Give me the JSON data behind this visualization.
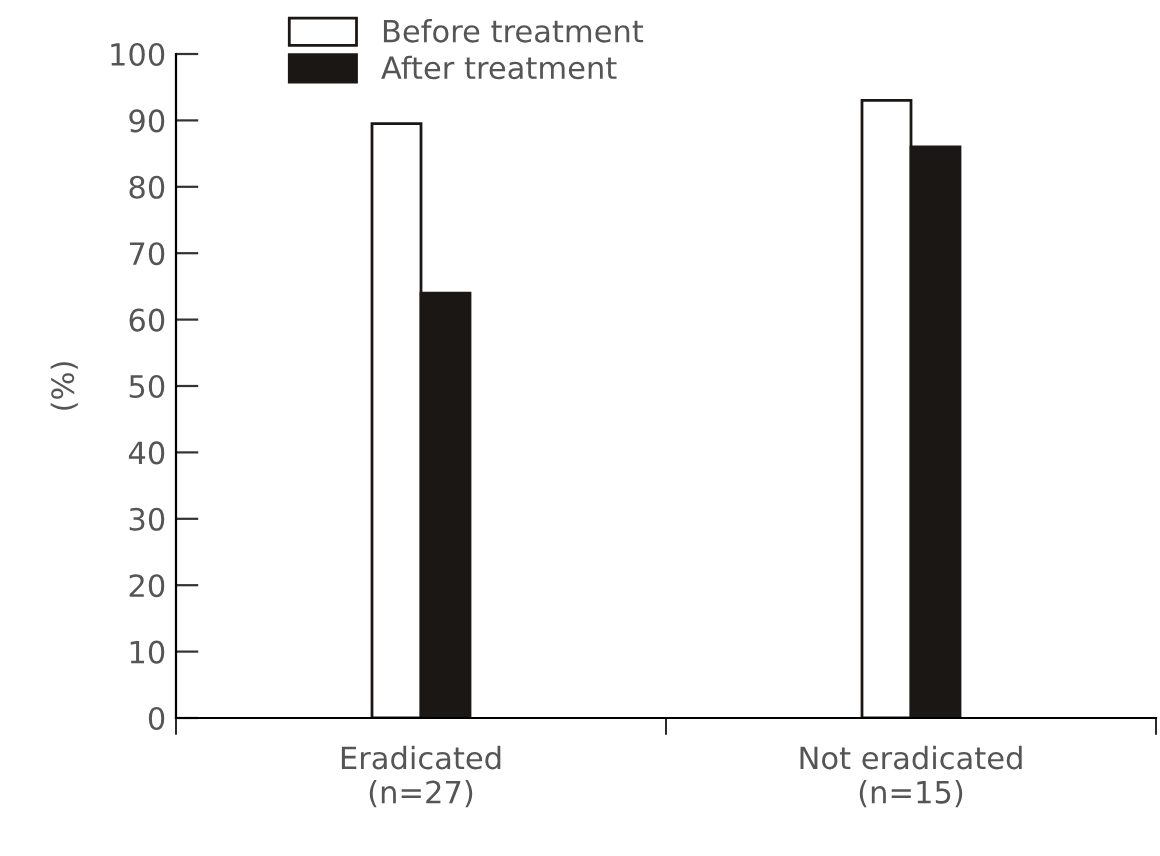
{
  "chart_data": {
    "type": "bar",
    "ylabel": "(%)",
    "categories": [
      "Eradicated\n(n=27)",
      "Not eradicated\n(n=15)"
    ],
    "series": [
      {
        "name": "Before treatment",
        "color": "#ffffff",
        "values": [
          89.5,
          93
        ]
      },
      {
        "name": "After treatment",
        "color": "#1a1714",
        "values": [
          64,
          86
        ]
      }
    ],
    "ylim": [
      0,
      100
    ],
    "yticks": [
      0,
      10,
      20,
      30,
      40,
      50,
      60,
      70,
      80,
      90,
      100
    ],
    "grid": false,
    "legend": "top left"
  }
}
